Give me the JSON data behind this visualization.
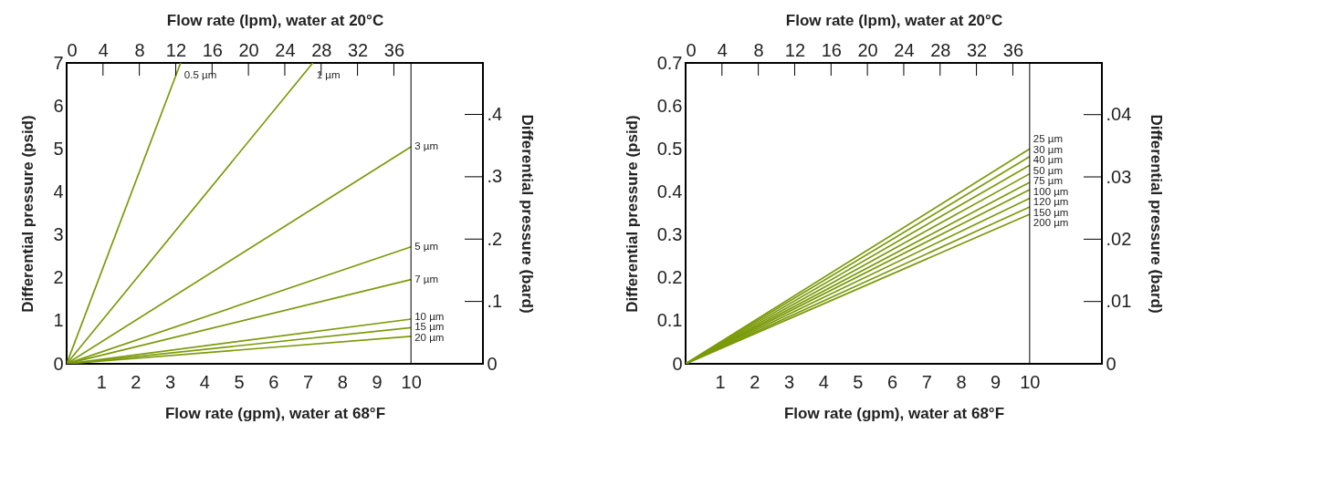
{
  "chart_data": [
    {
      "type": "line",
      "xlabel": "Flow rate (gpm), water at 68°F",
      "x2label": "Flow rate (lpm), water at 20°C",
      "ylabel": "Differential pressure (psid)",
      "y2label": "Differential pressure (bard)",
      "xlim": [
        0,
        12.09
      ],
      "xticks": [
        1,
        2,
        3,
        4,
        5,
        6,
        7,
        8,
        9,
        10
      ],
      "x2lim": [
        0,
        45.8
      ],
      "x2ticks": [
        0,
        4,
        8,
        12,
        16,
        20,
        24,
        28,
        32,
        36
      ],
      "ylim": [
        0,
        7
      ],
      "yticks": [
        0,
        1,
        2,
        3,
        4,
        5,
        6,
        7
      ],
      "y2lim": [
        0,
        0.4826
      ],
      "y2ticks": [
        0,
        {
          "value": 0.1,
          "label": ".1"
        },
        {
          "value": 0.2,
          "label": ".2"
        },
        {
          "value": 0.3,
          "label": ".3"
        },
        {
          "value": 0.4,
          "label": ".4"
        }
      ],
      "grid": false,
      "marker": "none",
      "line_style": "solid",
      "ref_lines": [
        {
          "axis": "x",
          "value": 10,
          "color": "#000000"
        }
      ],
      "series": [
        {
          "name": "0.5 µm",
          "color": "#7b9a0a",
          "x": [
            0,
            3.31
          ],
          "values": [
            0,
            7
          ]
        },
        {
          "name": "1 µm",
          "color": "#7b9a0a",
          "x": [
            0,
            7.15
          ],
          "values": [
            0,
            7
          ]
        },
        {
          "name": "3 µm",
          "color": "#7b9a0a",
          "x": [
            0,
            10
          ],
          "values": [
            0,
            5.05
          ]
        },
        {
          "name": "5 µm",
          "color": "#7b9a0a",
          "x": [
            0,
            10
          ],
          "values": [
            0,
            2.72
          ]
        },
        {
          "name": "7 µm",
          "color": "#7b9a0a",
          "x": [
            0,
            10
          ],
          "values": [
            0,
            1.96
          ]
        },
        {
          "name": "10 µm",
          "color": "#7b9a0a",
          "x": [
            0,
            10
          ],
          "values": [
            0,
            1.04
          ]
        },
        {
          "name": "15 µm",
          "color": "#7b9a0a",
          "x": [
            0,
            10
          ],
          "values": [
            0,
            0.84
          ]
        },
        {
          "name": "20 µm",
          "color": "#7b9a0a",
          "x": [
            0,
            10
          ],
          "values": [
            0,
            0.64
          ]
        }
      ]
    },
    {
      "type": "line",
      "xlabel": "Flow rate (gpm), water at 68°F",
      "x2label": "Flow rate (lpm), water at 20°C",
      "ylabel": "Differential pressure (psid)",
      "y2label": "Differential pressure (bard)",
      "xlim": [
        0,
        12.1
      ],
      "xticks": [
        1,
        2,
        3,
        4,
        5,
        6,
        7,
        8,
        9,
        10
      ],
      "x2lim": [
        0,
        45.8
      ],
      "x2ticks": [
        0,
        4,
        8,
        12,
        16,
        20,
        24,
        28,
        32,
        36
      ],
      "ylim": [
        0,
        0.7
      ],
      "yticks": [
        0,
        0.1,
        0.2,
        0.3,
        0.4,
        0.5,
        0.6,
        0.7
      ],
      "y2lim": [
        0,
        0.0483
      ],
      "y2ticks": [
        0,
        {
          "value": 0.01,
          "label": ".01"
        },
        {
          "value": 0.02,
          "label": ".02"
        },
        {
          "value": 0.03,
          "label": ".03"
        },
        {
          "value": 0.04,
          "label": ".04"
        }
      ],
      "grid": false,
      "marker": "none",
      "line_style": "solid",
      "ref_lines": [
        {
          "axis": "x",
          "value": 10,
          "color": "#000000"
        }
      ],
      "series": [
        {
          "name": "25 µm",
          "color": "#7b9a0a",
          "x": [
            0,
            10
          ],
          "values": [
            0,
            0.5
          ]
        },
        {
          "name": "30 µm",
          "color": "#7b9a0a",
          "x": [
            0,
            10
          ],
          "values": [
            0,
            0.482
          ]
        },
        {
          "name": "40 µm",
          "color": "#7b9a0a",
          "x": [
            0,
            10
          ],
          "values": [
            0,
            0.462
          ]
        },
        {
          "name": "50 µm",
          "color": "#7b9a0a",
          "x": [
            0,
            10
          ],
          "values": [
            0,
            0.442
          ]
        },
        {
          "name": "75 µm",
          "color": "#7b9a0a",
          "x": [
            0,
            10
          ],
          "values": [
            0,
            0.422
          ]
        },
        {
          "name": "100 µm",
          "color": "#7b9a0a",
          "x": [
            0,
            10
          ],
          "values": [
            0,
            0.405
          ]
        },
        {
          "name": "120 µm",
          "color": "#7b9a0a",
          "x": [
            0,
            10
          ],
          "values": [
            0,
            0.385
          ]
        },
        {
          "name": "150 µm",
          "color": "#7b9a0a",
          "x": [
            0,
            10
          ],
          "values": [
            0,
            0.365
          ]
        },
        {
          "name": "200 µm",
          "color": "#7b9a0a",
          "x": [
            0,
            10
          ],
          "values": [
            0,
            0.348
          ]
        }
      ]
    }
  ]
}
